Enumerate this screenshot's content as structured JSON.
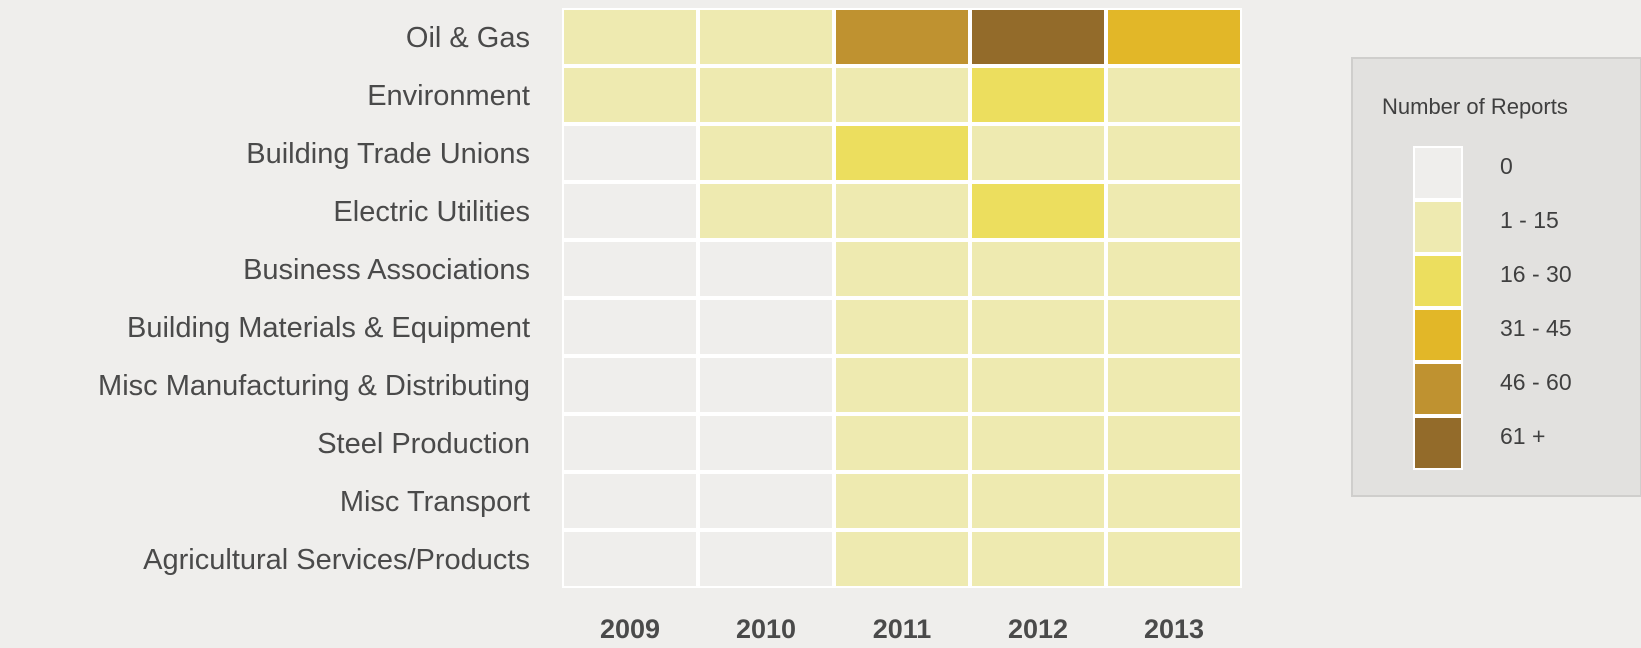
{
  "chart_data": {
    "type": "heatmap",
    "rows": [
      "Oil & Gas",
      "Environment",
      "Building Trade Unions",
      "Electric Utilities",
      "Business Associations",
      "Building Materials & Equipment",
      "Misc Manufacturing & Distributing",
      "Steel Production",
      "Misc Transport",
      "Agricultural Services/Products"
    ],
    "columns": [
      "2009",
      "2010",
      "2011",
      "2012",
      "2013"
    ],
    "values": [
      [
        "1 - 15",
        "1 - 15",
        "46 - 60",
        "61 +",
        "31 - 45"
      ],
      [
        "1 - 15",
        "1 - 15",
        "1 - 15",
        "16 - 30",
        "1 - 15"
      ],
      [
        "0",
        "1 - 15",
        "16 - 30",
        "1 - 15",
        "1 - 15"
      ],
      [
        "0",
        "1 - 15",
        "1 - 15",
        "16 - 30",
        "1 - 15"
      ],
      [
        "0",
        "0",
        "1 - 15",
        "1 - 15",
        "1 - 15"
      ],
      [
        "0",
        "0",
        "1 - 15",
        "1 - 15",
        "1 - 15"
      ],
      [
        "0",
        "0",
        "1 - 15",
        "1 - 15",
        "1 - 15"
      ],
      [
        "0",
        "0",
        "1 - 15",
        "1 - 15",
        "1 - 15"
      ],
      [
        "0",
        "0",
        "1 - 15",
        "1 - 15",
        "1 - 15"
      ],
      [
        "0",
        "0",
        "1 - 15",
        "1 - 15",
        "1 - 15"
      ]
    ],
    "legend": {
      "title": "Number of Reports",
      "placement": "right",
      "bins": [
        {
          "label": "0",
          "color": "#efeeec"
        },
        {
          "label": "1 - 15",
          "color": "#eeeab0"
        },
        {
          "label": "16 - 30",
          "color": "#ecde5e"
        },
        {
          "label": "31 - 45",
          "color": "#e2b728"
        },
        {
          "label": "46 - 60",
          "color": "#bf9230"
        },
        {
          "label": "61 +",
          "color": "#936b2a"
        }
      ]
    },
    "grid": true
  }
}
